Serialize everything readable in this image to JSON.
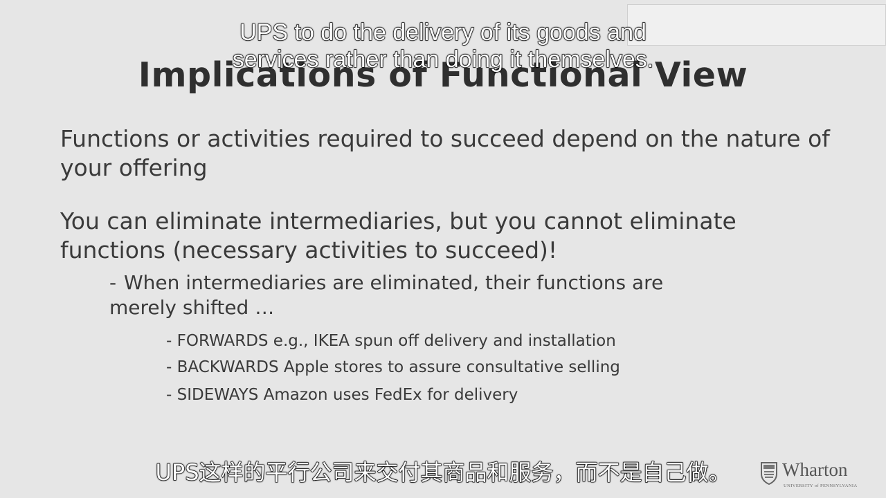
{
  "slide": {
    "title": "Implications of Functional View",
    "paragraphs": [
      "Functions or activities required to succeed depend on the nature of your offering",
      "You can eliminate intermediaries, but you cannot eliminate functions (necessary activities to succeed)!"
    ],
    "sub_bullet": {
      "marker": "-",
      "text": "When intermediaries are eliminated, their functions are merely shifted …"
    },
    "sub_sub_bullets": [
      "- FORWARDS e.g., IKEA spun off delivery and installation",
      "- BACKWARDS Apple stores to assure consultative selling",
      "- SIDEWAYS Amazon uses FedEx for delivery"
    ]
  },
  "captions": {
    "english_line1": "UPS to do the delivery of its goods and",
    "english_line2": "services rather than doing it themselves.",
    "chinese": "UPS这样的平行公司来交付其商品和服务，而不是自己做。"
  },
  "logo": {
    "wordmark": "Wharton",
    "subtitle": "UNIVERSITY of PENNSYLVANIA",
    "icon": "penn-shield-icon"
  },
  "colors": {
    "background": "#e6e6e6",
    "text": "#3a3a3a",
    "caption_fill": "#ffffff",
    "caption_outline": "#000000"
  }
}
